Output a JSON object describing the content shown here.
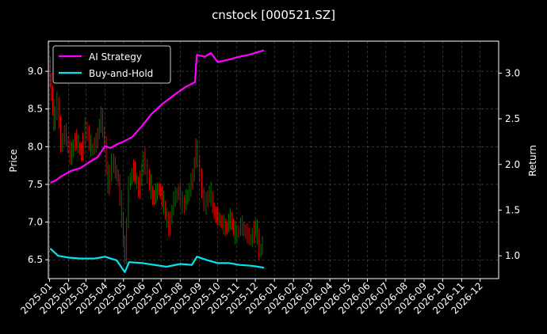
{
  "chart_data": {
    "type": "line",
    "title": "cnstock [000521.SZ]",
    "xlabel": "",
    "ylabel_left": "Price",
    "ylabel_right": "Return",
    "x_ticks": [
      "2025-01",
      "2025-02",
      "2025-03",
      "2025-04",
      "2025-05",
      "2025-06",
      "2025-07",
      "2025-08",
      "2025-09",
      "2025-10",
      "2025-11",
      "2025-12",
      "2026-01",
      "2026-02",
      "2026-03",
      "2026-04",
      "2026-05",
      "2026-06",
      "2026-07",
      "2026-08",
      "2026-09",
      "2026-10",
      "2026-11",
      "2026-12"
    ],
    "xlim": [
      "2024-12-30",
      "2026-12-31"
    ],
    "ylim_left": [
      6.25,
      9.4
    ],
    "yticks_left": [
      "6.5",
      "7.0",
      "7.5",
      "8.0",
      "8.5",
      "9.0"
    ],
    "ylim_right": [
      0.75,
      3.35
    ],
    "yticks_right": [
      "1.0",
      "1.5",
      "2.0",
      "2.5",
      "3.0"
    ],
    "grid": true,
    "legend_position": "top-left",
    "colors": {
      "background": "#000000",
      "strategy": "#ff00ff",
      "buyhold": "#00e5ee",
      "up": "#008000",
      "down": "#ff0000",
      "grid": "#555555"
    },
    "series": [
      {
        "name": "AI Strategy",
        "axis": "right",
        "points": [
          [
            "2025-01-02",
            1.8
          ],
          [
            "2025-01-10",
            1.82
          ],
          [
            "2025-01-20",
            1.87
          ],
          [
            "2025-02-05",
            1.93
          ],
          [
            "2025-02-20",
            1.96
          ],
          [
            "2025-03-05",
            2.02
          ],
          [
            "2025-03-20",
            2.08
          ],
          [
            "2025-04-01",
            2.2
          ],
          [
            "2025-04-10",
            2.18
          ],
          [
            "2025-04-20",
            2.22
          ],
          [
            "2025-05-01",
            2.25
          ],
          [
            "2025-05-15",
            2.3
          ],
          [
            "2025-06-01",
            2.43
          ],
          [
            "2025-06-15",
            2.55
          ],
          [
            "2025-07-01",
            2.65
          ],
          [
            "2025-07-20",
            2.75
          ],
          [
            "2025-08-10",
            2.85
          ],
          [
            "2025-08-25",
            2.9
          ],
          [
            "2025-08-28",
            3.2
          ],
          [
            "2025-09-10",
            3.18
          ],
          [
            "2025-09-20",
            3.22
          ],
          [
            "2025-10-01",
            3.12
          ],
          [
            "2025-10-20",
            3.15
          ],
          [
            "2025-11-05",
            3.18
          ],
          [
            "2025-11-20",
            3.2
          ],
          [
            "2025-12-05",
            3.23
          ],
          [
            "2025-12-15",
            3.25
          ]
        ]
      },
      {
        "name": "Buy-and-Hold",
        "axis": "right",
        "points": [
          [
            "2025-01-02",
            1.08
          ],
          [
            "2025-01-15",
            1.0
          ],
          [
            "2025-02-01",
            0.98
          ],
          [
            "2025-02-20",
            0.97
          ],
          [
            "2025-03-15",
            0.97
          ],
          [
            "2025-04-01",
            0.99
          ],
          [
            "2025-04-10",
            0.97
          ],
          [
            "2025-04-20",
            0.95
          ],
          [
            "2025-05-03",
            0.82
          ],
          [
            "2025-05-10",
            0.93
          ],
          [
            "2025-06-01",
            0.92
          ],
          [
            "2025-06-20",
            0.9
          ],
          [
            "2025-07-10",
            0.88
          ],
          [
            "2025-08-01",
            0.91
          ],
          [
            "2025-08-20",
            0.9
          ],
          [
            "2025-08-28",
            0.99
          ],
          [
            "2025-09-15",
            0.95
          ],
          [
            "2025-10-01",
            0.92
          ],
          [
            "2025-10-20",
            0.92
          ],
          [
            "2025-11-05",
            0.9
          ],
          [
            "2025-11-25",
            0.89
          ],
          [
            "2025-12-05",
            0.88
          ],
          [
            "2025-12-15",
            0.87
          ]
        ]
      }
    ],
    "price_candles": {
      "note": "daily candlestick segments, green = up, red = down",
      "points": [
        [
          "2025-01-02",
          9.05
        ],
        [
          "2025-01-06",
          8.7
        ],
        [
          "2025-01-10",
          8.3
        ],
        [
          "2025-01-16",
          8.6
        ],
        [
          "2025-01-22",
          8.0
        ],
        [
          "2025-01-28",
          8.2
        ],
        [
          "2025-02-06",
          7.85
        ],
        [
          "2025-02-14",
          8.1
        ],
        [
          "2025-02-24",
          7.9
        ],
        [
          "2025-03-03",
          8.25
        ],
        [
          "2025-03-12",
          7.95
        ],
        [
          "2025-03-20",
          8.05
        ],
        [
          "2025-03-28",
          8.4
        ],
        [
          "2025-04-03",
          8.0
        ],
        [
          "2025-04-08",
          7.45
        ],
        [
          "2025-04-15",
          7.8
        ],
        [
          "2025-04-25",
          7.55
        ],
        [
          "2025-05-06",
          6.5
        ],
        [
          "2025-05-12",
          7.5
        ],
        [
          "2025-05-20",
          7.7
        ],
        [
          "2025-05-28",
          7.4
        ],
        [
          "2025-06-05",
          7.85
        ],
        [
          "2025-06-12",
          7.6
        ],
        [
          "2025-06-20",
          7.3
        ],
        [
          "2025-06-30",
          7.45
        ],
        [
          "2025-07-08",
          7.2
        ],
        [
          "2025-07-16",
          6.9
        ],
        [
          "2025-07-24",
          7.3
        ],
        [
          "2025-08-01",
          7.4
        ],
        [
          "2025-08-08",
          7.2
        ],
        [
          "2025-08-16",
          7.35
        ],
        [
          "2025-08-24",
          7.6
        ],
        [
          "2025-08-29",
          8.0
        ],
        [
          "2025-09-05",
          7.6
        ],
        [
          "2025-09-12",
          7.2
        ],
        [
          "2025-09-20",
          7.4
        ],
        [
          "2025-09-28",
          7.1
        ],
        [
          "2025-10-08",
          7.0
        ],
        [
          "2025-10-16",
          6.9
        ],
        [
          "2025-10-24",
          7.05
        ],
        [
          "2025-11-01",
          6.8
        ],
        [
          "2025-11-10",
          6.95
        ],
        [
          "2025-11-18",
          6.85
        ],
        [
          "2025-11-26",
          6.75
        ],
        [
          "2025-12-04",
          6.95
        ],
        [
          "2025-12-10",
          6.6
        ],
        [
          "2025-12-15",
          6.7
        ]
      ]
    }
  }
}
